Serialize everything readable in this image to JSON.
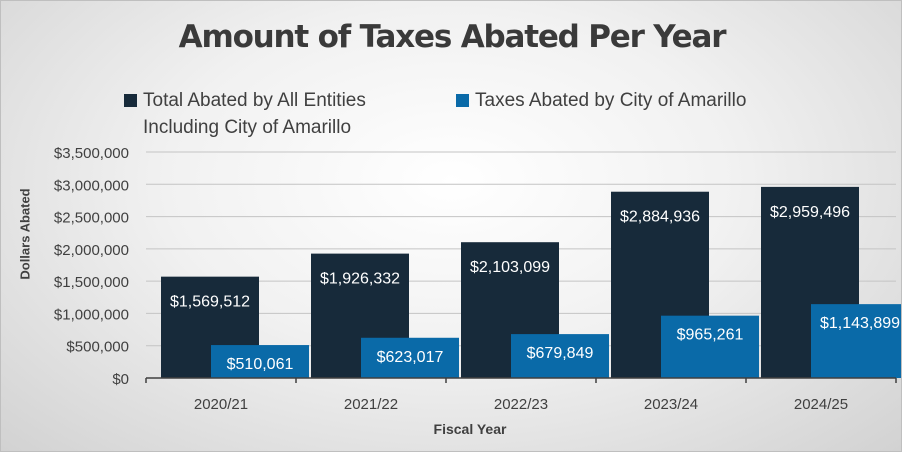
{
  "chart_data": {
    "type": "bar",
    "title": "Amount of Taxes Abated Per Year",
    "xlabel": "Fiscal Year",
    "ylabel": "Dollars Abated",
    "categories": [
      "2020/21",
      "2021/22",
      "2022/23",
      "2023/24",
      "2024/25"
    ],
    "series": [
      {
        "name": "Total Abated by All Entities Including City of Amarillo",
        "color": "#172a3a",
        "values": [
          1569512,
          1926332,
          2103099,
          2884936,
          2959496
        ],
        "labels": [
          "$1,569,512",
          "$1,926,332",
          "$2,103,099",
          "$2,884,936",
          "$2,959,496"
        ]
      },
      {
        "name": "Taxes Abated by City of Amarillo",
        "color": "#0a6aa8",
        "values": [
          510061,
          623017,
          679849,
          965261,
          1143899
        ],
        "labels": [
          "$510,061",
          "$623,017",
          "$679,849",
          "$965,261",
          "$1,143,899"
        ]
      }
    ],
    "ylim": [
      0,
      3500000
    ],
    "y_ticks": [
      0,
      500000,
      1000000,
      1500000,
      2000000,
      2500000,
      3000000,
      3500000
    ],
    "y_tick_labels": [
      "$0",
      "$500,000",
      "$1,000,000",
      "$1,500,000",
      "$2,000,000",
      "$2,500,000",
      "$3,000,000",
      "$3,500,000"
    ],
    "grid": true,
    "legend_position": "top"
  }
}
